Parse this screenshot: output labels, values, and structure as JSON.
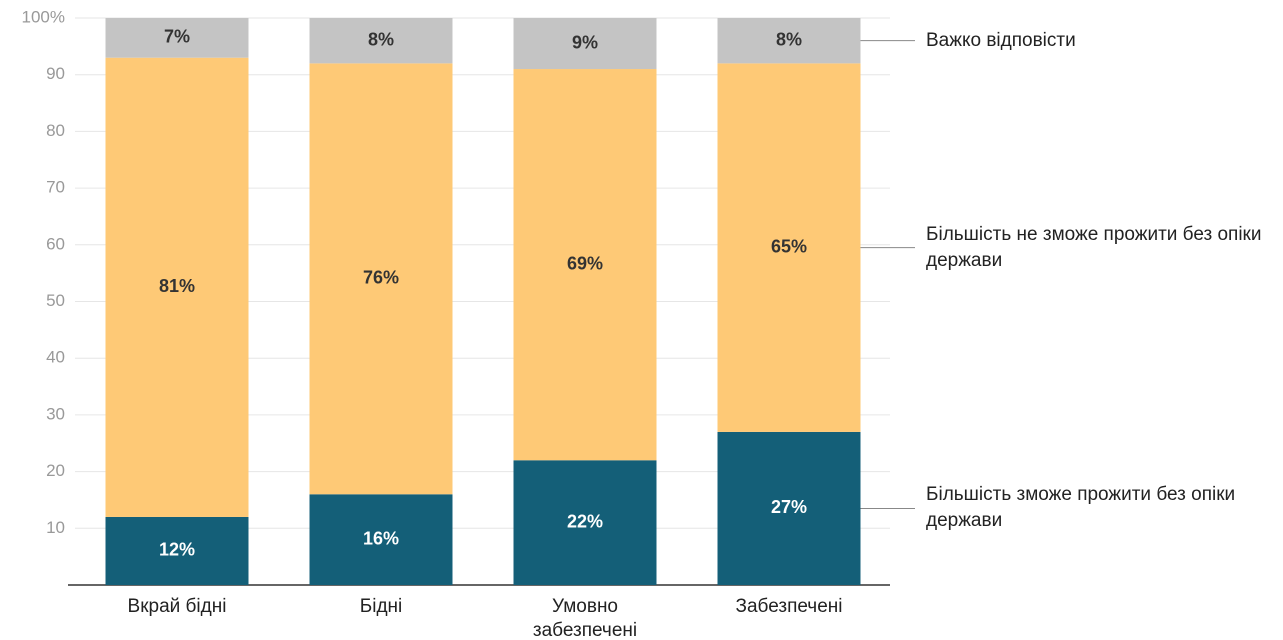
{
  "chart_data": {
    "type": "stacked_bar",
    "categories": [
      "Вкрай бідні",
      "Бідні",
      "Умовно забезпечені",
      "Забезпечені"
    ],
    "series": [
      {
        "name": "Більшість зможе прожити без опіки держави",
        "color": "#145f78",
        "values": [
          12,
          16,
          22,
          27
        ],
        "value_labels": [
          "12%",
          "16%",
          "22%",
          "27%"
        ]
      },
      {
        "name": "Більшість не зможе прожити без опіки держави",
        "color": "#fec976",
        "values": [
          81,
          76,
          69,
          65
        ],
        "value_labels": [
          "81%",
          "76%",
          "69%",
          "65%"
        ]
      },
      {
        "name": "Важко відповісти",
        "color": "#c4c4c4",
        "values": [
          7,
          8,
          9,
          8
        ],
        "value_labels": [
          "7%",
          "8%",
          "9%",
          "8%"
        ]
      }
    ],
    "ylim": [
      0,
      100
    ],
    "yticks": [
      10,
      20,
      30,
      40,
      50,
      60,
      70,
      80,
      90,
      {
        "value": 100,
        "label": "100%"
      }
    ],
    "grid": true
  }
}
